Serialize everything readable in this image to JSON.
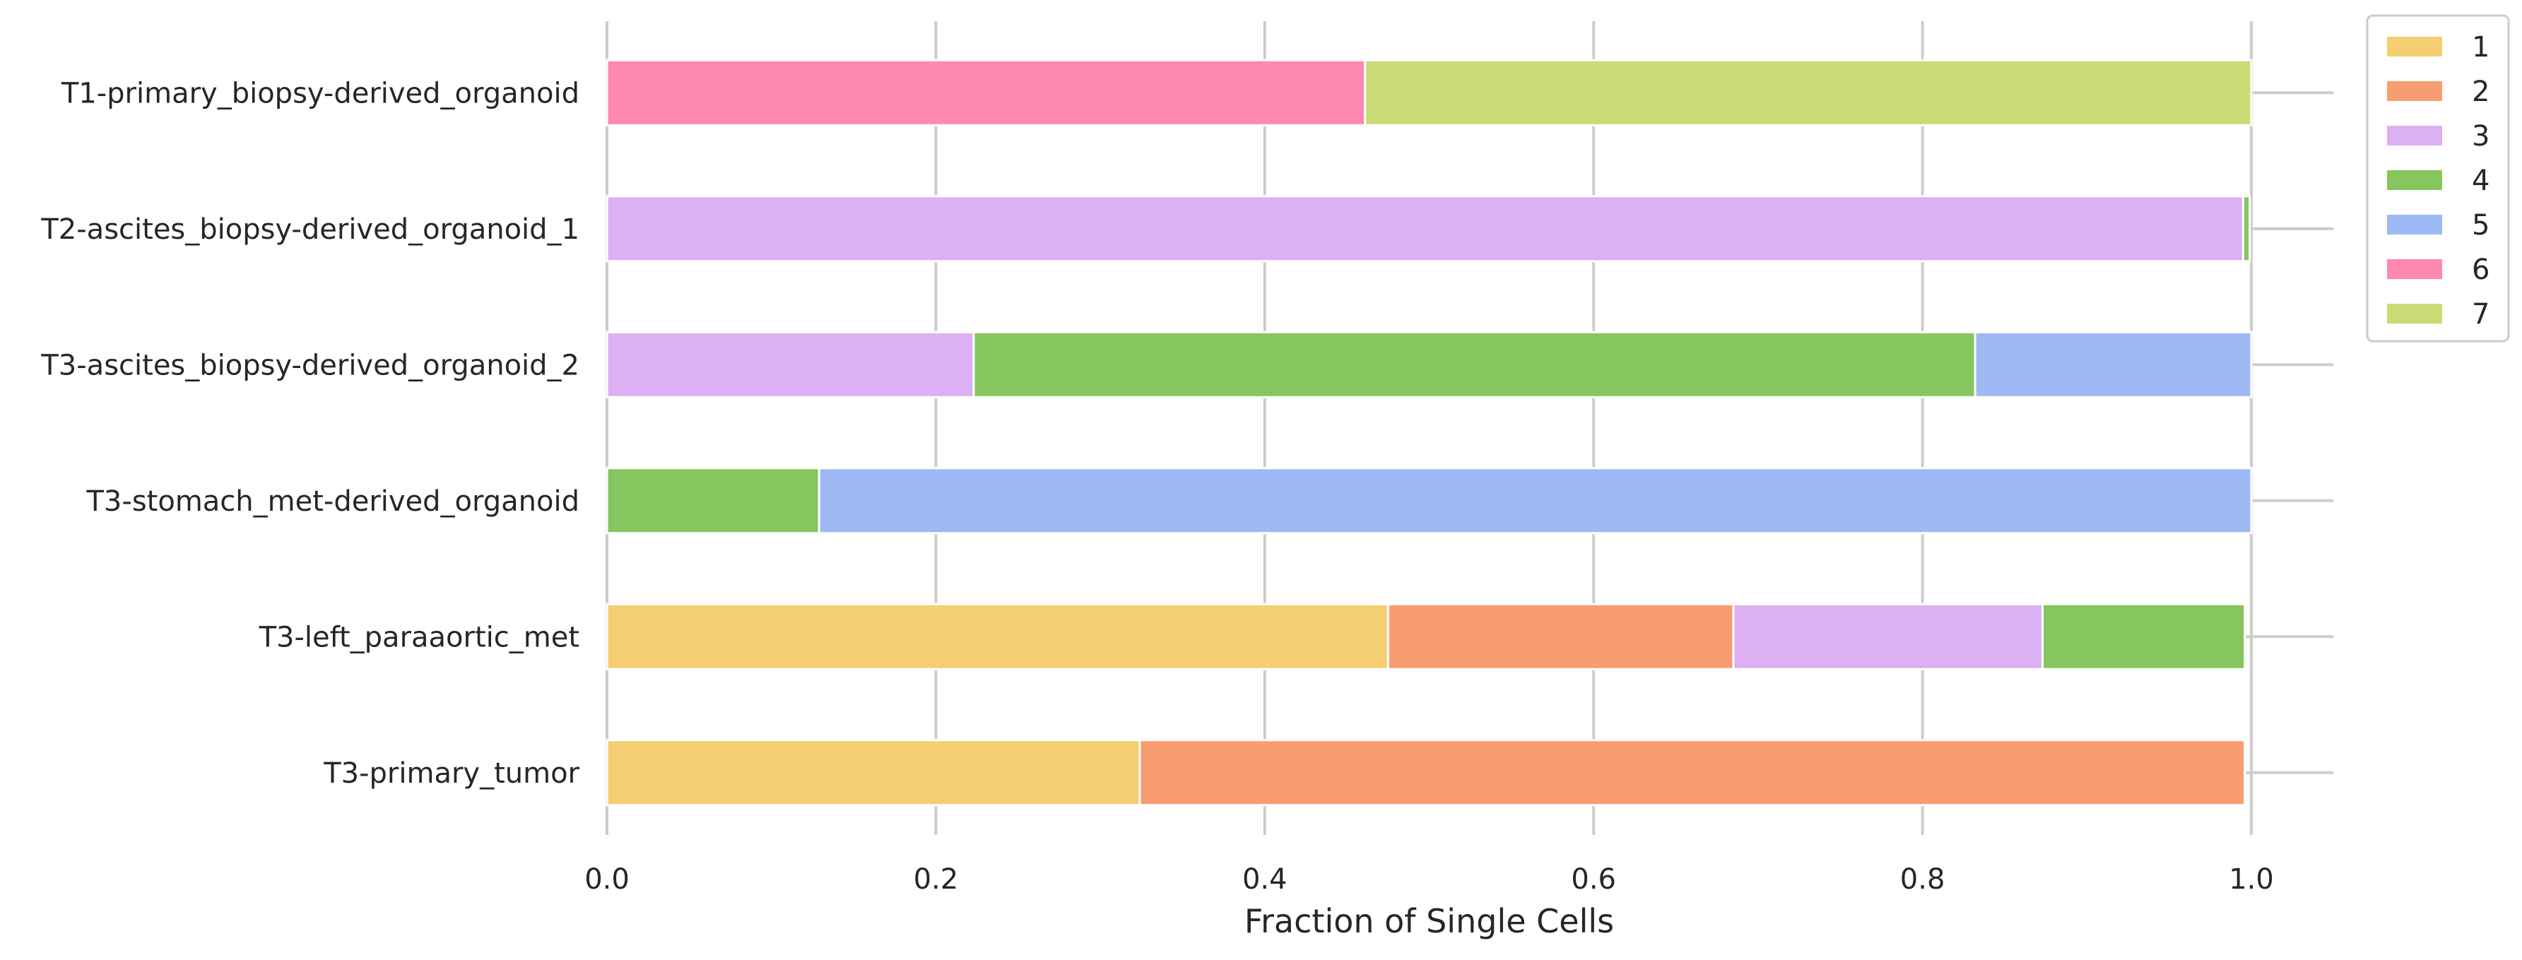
{
  "chart_data": {
    "type": "bar",
    "orientation": "horizontal",
    "stacked": true,
    "xlabel": "Fraction of Single Cells",
    "ylabel": "",
    "xlim": [
      0,
      1.05
    ],
    "xticks": [
      "0.0",
      "0.2",
      "0.4",
      "0.6",
      "0.8",
      "1.0"
    ],
    "grid": "vertical",
    "legend_position": "top-right outside",
    "categories": [
      "T1-primary_biopsy-derived_organoid",
      "T2-ascites_biopsy-derived_organoid_1",
      "T3-ascites_biopsy-derived_organoid_2",
      "T3-stomach_met-derived_organoid",
      "T3-left_paraaortic_met",
      "T3-primary_tumor"
    ],
    "series": [
      {
        "name": "1",
        "color": "#F5CE72",
        "values": [
          0,
          0,
          0,
          0,
          0.475,
          0.324
        ]
      },
      {
        "name": "2",
        "color": "#F89D72",
        "values": [
          0,
          0,
          0,
          0,
          0.21,
          0.672
        ]
      },
      {
        "name": "3",
        "color": "#DCB0F2",
        "values": [
          0,
          0.995,
          0.223,
          0,
          0.188,
          0
        ]
      },
      {
        "name": "4",
        "color": "#87C55F",
        "values": [
          0,
          0.004,
          0.609,
          0.129,
          0.123,
          0
        ]
      },
      {
        "name": "5",
        "color": "#9EB9F3",
        "values": [
          0,
          0,
          0.168,
          0.871,
          0,
          0
        ]
      },
      {
        "name": "6",
        "color": "#FE88B1",
        "values": [
          0.461,
          0,
          0,
          0,
          0,
          0
        ]
      },
      {
        "name": "7",
        "color": "#C9DB74",
        "values": [
          0.539,
          0,
          0,
          0,
          0,
          0
        ]
      }
    ]
  }
}
